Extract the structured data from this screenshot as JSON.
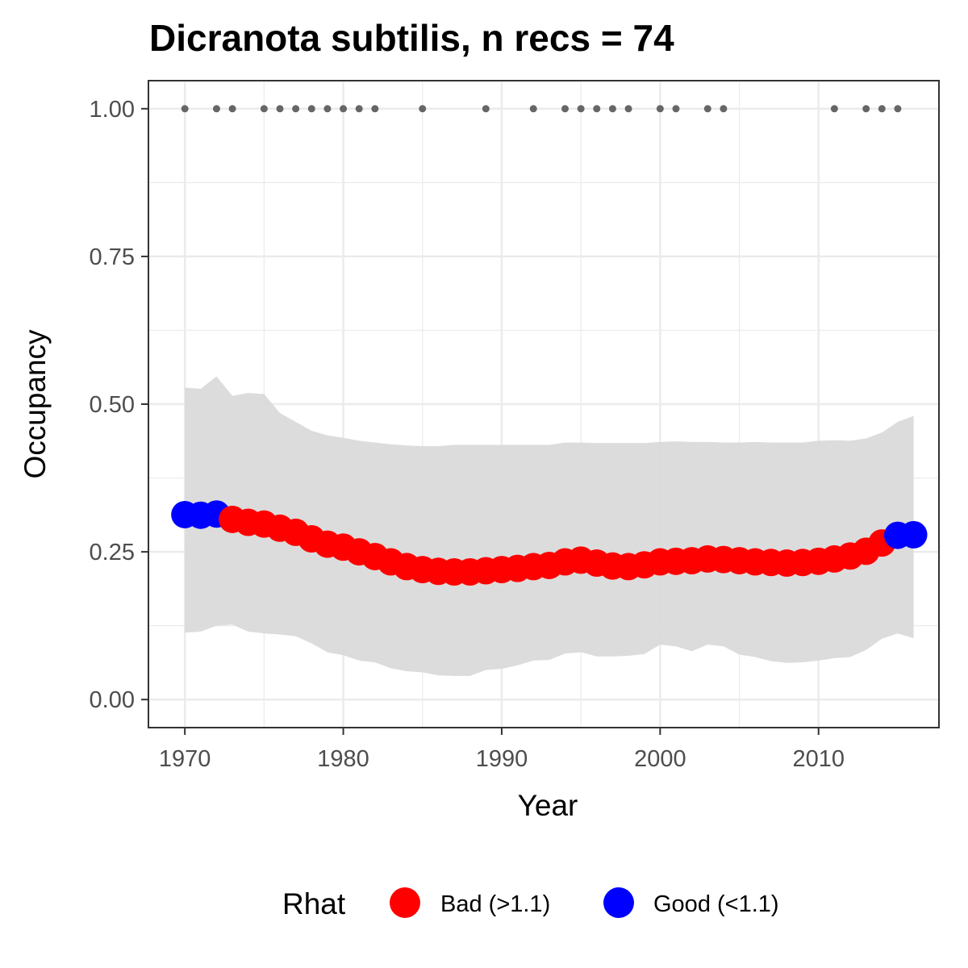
{
  "chart_data": {
    "type": "scatter",
    "title": "Dicranota subtilis, n recs = 74",
    "xlabel": "Year",
    "ylabel": "Occupancy",
    "xlim": [
      1967.7,
      2017.6
    ],
    "ylim": [
      -0.0475,
      1.0475
    ],
    "x_ticks": [
      1970,
      1980,
      1990,
      2000,
      2010
    ],
    "x_tick_labels": [
      "1970",
      "1980",
      "1990",
      "2000",
      "2010"
    ],
    "y_ticks": [
      0,
      0.25,
      0.5,
      0.75,
      1.0
    ],
    "y_tick_labels": [
      "0.00",
      "0.25",
      "0.50",
      "0.75",
      "1.00"
    ],
    "grid": true,
    "legend": {
      "title": "Rhat",
      "position": "bottom",
      "items": [
        {
          "label": "Bad (>1.1)",
          "color": "#ff0000"
        },
        {
          "label": "Good (<1.1)",
          "color": "#0000ff"
        }
      ]
    },
    "colors": {
      "bad": "#ff0000",
      "good": "#0000ff",
      "ribbon": "#d9d9d9",
      "record_points": "#666666"
    },
    "occupancy_series": {
      "x": [
        1970,
        1971,
        1972,
        1973,
        1974,
        1975,
        1976,
        1977,
        1978,
        1979,
        1980,
        1981,
        1982,
        1983,
        1984,
        1985,
        1986,
        1987,
        1988,
        1989,
        1990,
        1991,
        1992,
        1993,
        1994,
        1995,
        1996,
        1997,
        1998,
        1999,
        2000,
        2001,
        2002,
        2003,
        2004,
        2005,
        2006,
        2007,
        2008,
        2009,
        2010,
        2011,
        2012,
        2013,
        2014,
        2015,
        2016
      ],
      "y": [
        0.313,
        0.312,
        0.314,
        0.305,
        0.3,
        0.297,
        0.29,
        0.283,
        0.272,
        0.263,
        0.258,
        0.25,
        0.242,
        0.233,
        0.225,
        0.22,
        0.217,
        0.216,
        0.216,
        0.218,
        0.22,
        0.222,
        0.225,
        0.227,
        0.233,
        0.236,
        0.231,
        0.226,
        0.225,
        0.228,
        0.233,
        0.234,
        0.235,
        0.238,
        0.237,
        0.235,
        0.233,
        0.232,
        0.231,
        0.232,
        0.234,
        0.238,
        0.243,
        0.251,
        0.265,
        0.278,
        0.279
      ],
      "rhat": [
        "good",
        "good",
        "good",
        "bad",
        "bad",
        "bad",
        "bad",
        "bad",
        "bad",
        "bad",
        "bad",
        "bad",
        "bad",
        "bad",
        "bad",
        "bad",
        "bad",
        "bad",
        "bad",
        "bad",
        "bad",
        "bad",
        "bad",
        "bad",
        "bad",
        "bad",
        "bad",
        "bad",
        "bad",
        "bad",
        "bad",
        "bad",
        "bad",
        "bad",
        "bad",
        "bad",
        "bad",
        "bad",
        "bad",
        "bad",
        "bad",
        "bad",
        "bad",
        "bad",
        "bad",
        "good",
        "good"
      ]
    },
    "credible_interval": {
      "x": [
        1970,
        1971,
        1972,
        1973,
        1974,
        1975,
        1976,
        1977,
        1978,
        1979,
        1980,
        1981,
        1982,
        1983,
        1984,
        1985,
        1986,
        1987,
        1988,
        1989,
        1990,
        1991,
        1992,
        1993,
        1994,
        1995,
        1996,
        1997,
        1998,
        1999,
        2000,
        2001,
        2002,
        2003,
        2004,
        2005,
        2006,
        2007,
        2008,
        2009,
        2010,
        2011,
        2012,
        2013,
        2014,
        2015,
        2016
      ],
      "upper": [
        0.528,
        0.526,
        0.547,
        0.514,
        0.519,
        0.517,
        0.485,
        0.47,
        0.455,
        0.447,
        0.443,
        0.438,
        0.435,
        0.432,
        0.43,
        0.429,
        0.429,
        0.431,
        0.431,
        0.431,
        0.431,
        0.431,
        0.431,
        0.431,
        0.435,
        0.435,
        0.434,
        0.434,
        0.434,
        0.434,
        0.436,
        0.437,
        0.436,
        0.436,
        0.435,
        0.435,
        0.436,
        0.435,
        0.435,
        0.435,
        0.438,
        0.439,
        0.438,
        0.442,
        0.452,
        0.47,
        0.48
      ],
      "lower": [
        0.113,
        0.115,
        0.125,
        0.127,
        0.115,
        0.112,
        0.11,
        0.107,
        0.095,
        0.08,
        0.075,
        0.066,
        0.063,
        0.053,
        0.048,
        0.046,
        0.041,
        0.04,
        0.04,
        0.05,
        0.052,
        0.058,
        0.066,
        0.067,
        0.078,
        0.08,
        0.073,
        0.073,
        0.074,
        0.077,
        0.093,
        0.09,
        0.082,
        0.093,
        0.09,
        0.076,
        0.072,
        0.065,
        0.062,
        0.063,
        0.066,
        0.07,
        0.072,
        0.084,
        0.103,
        0.112,
        0.104
      ]
    },
    "record_years": {
      "x": [
        1970,
        1972,
        1973,
        1975,
        1976,
        1977,
        1978,
        1979,
        1980,
        1981,
        1982,
        1985,
        1989,
        1992,
        1994,
        1995,
        1996,
        1997,
        1998,
        2000,
        2001,
        2003,
        2004,
        2011,
        2013,
        2014,
        2015
      ],
      "y": 1.0
    }
  }
}
